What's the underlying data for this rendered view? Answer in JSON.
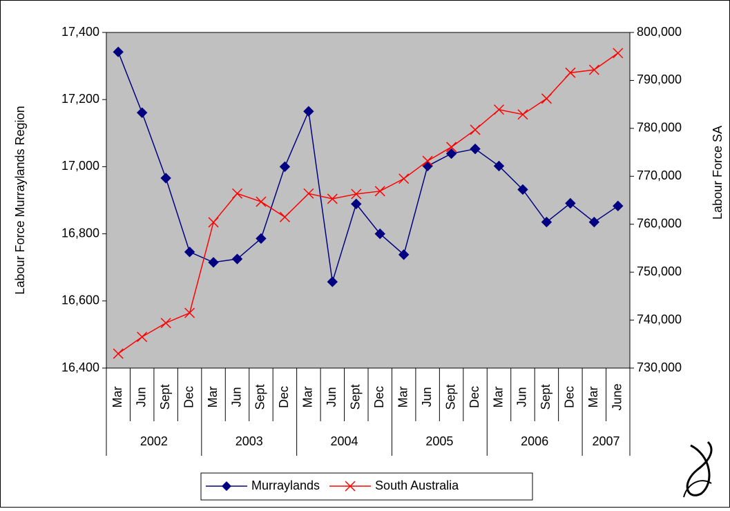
{
  "chart_data": {
    "type": "line",
    "y_label": "Labour Force Murraylands Region",
    "y2_label": "Labour Force SA",
    "category_groups": [
      {
        "label": "2002",
        "categories": [
          "Mar",
          "Jun",
          "Sept",
          "Dec"
        ]
      },
      {
        "label": "2003",
        "categories": [
          "Mar",
          "Jun",
          "Sept",
          "Dec"
        ]
      },
      {
        "label": "2004",
        "categories": [
          "Mar",
          "Jun",
          "Sept",
          "Dec"
        ]
      },
      {
        "label": "2005",
        "categories": [
          "Mar",
          "Jun",
          "Sept",
          "Dec"
        ]
      },
      {
        "label": "2006",
        "categories": [
          "Mar",
          "Jun",
          "Sept",
          "Dec"
        ]
      },
      {
        "label": "2007",
        "categories": [
          "Mar",
          "June"
        ]
      }
    ],
    "series": [
      {
        "name": "Murraylands",
        "color": "#000080",
        "marker": "diamond",
        "values": [
          17342,
          17161,
          16966,
          16746,
          16715,
          16725,
          16786,
          17000,
          17165,
          16657,
          16889,
          16800,
          16738,
          17002,
          17039,
          17053,
          17002,
          16932,
          16835,
          16891,
          16835,
          16883
        ]
      },
      {
        "name": "South Australia",
        "color": "#ff0000",
        "marker": "x",
        "axis": "y2",
        "values": [
          733000,
          736500,
          739400,
          741500,
          760400,
          766400,
          764700,
          761500,
          766400,
          765300,
          766300,
          766900,
          769500,
          773200,
          776100,
          779700,
          783900,
          782900,
          786200,
          791600,
          792200,
          795700
        ]
      }
    ],
    "ylim": [
      16400,
      17400
    ],
    "yticks": [
      {
        "value": 16400,
        "label": "16,400"
      },
      {
        "value": 16600,
        "label": "16,600"
      },
      {
        "value": 16800,
        "label": "16,800"
      },
      {
        "value": 17000,
        "label": "17,000"
      },
      {
        "value": 17200,
        "label": "17,200"
      },
      {
        "value": 17400,
        "label": "17,400"
      }
    ],
    "y2lim": [
      730000,
      800000
    ],
    "y2ticks": [
      {
        "value": 730000,
        "label": "730,000"
      },
      {
        "value": 740000,
        "label": "740,000"
      },
      {
        "value": 750000,
        "label": "750,000"
      },
      {
        "value": 760000,
        "label": "760,000"
      },
      {
        "value": 770000,
        "label": "770,000"
      },
      {
        "value": 780000,
        "label": "780,000"
      },
      {
        "value": 790000,
        "label": "790,000"
      },
      {
        "value": 800000,
        "label": "800,000"
      }
    ],
    "legend": "bottom",
    "plot_background": "#c0c0c0"
  }
}
